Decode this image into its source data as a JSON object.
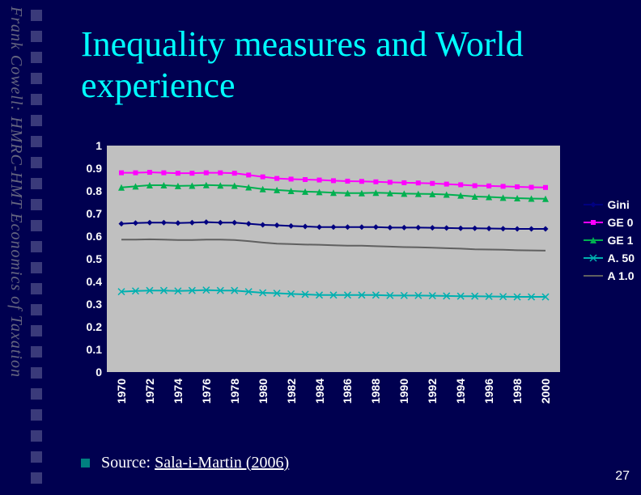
{
  "sidebar_label": "Frank Cowell: HMRC-HMT Economics of Taxation",
  "title": "Inequality measures and World\nexperience",
  "source_prefix": "Source: ",
  "source_author": "Sala-i-Martin (2006)",
  "page_number": "27",
  "colors": {
    "slide_bg": "#000050",
    "title": "#00ffff",
    "plot_bg": "#c0c0c0",
    "sidebar_text": "#666680",
    "bullet": "#008080"
  },
  "chart": {
    "type": "line",
    "ylim": [
      0,
      1
    ],
    "yticks": [
      0,
      0.1,
      0.2,
      0.3,
      0.4,
      0.5,
      0.6,
      0.7,
      0.8,
      0.9,
      1
    ],
    "ytick_labels": [
      "0",
      "0.1",
      "0.2",
      "0.3",
      "0.4",
      "0.5",
      "0.6",
      "0.7",
      "0.8",
      "0.9",
      "1"
    ],
    "xlim": [
      1970,
      2000
    ],
    "xticks": [
      1970,
      1972,
      1974,
      1976,
      1978,
      1980,
      1982,
      1984,
      1986,
      1988,
      1990,
      1992,
      1994,
      1996,
      1998,
      2000
    ],
    "xtick_labels": [
      "1970",
      "1972",
      "1974",
      "1976",
      "1978",
      "1980",
      "1982",
      "1984",
      "1986",
      "1988",
      "1990",
      "1992",
      "1994",
      "1996",
      "1998",
      "2000"
    ],
    "label_fontsize": 14,
    "series": [
      {
        "name": "Gini",
        "label": "Gini",
        "color": "#000080",
        "marker": "diamond",
        "marker_size": 7,
        "values": [
          0.655,
          0.658,
          0.66,
          0.66,
          0.658,
          0.66,
          0.662,
          0.66,
          0.66,
          0.655,
          0.65,
          0.648,
          0.645,
          0.643,
          0.64,
          0.64,
          0.64,
          0.64,
          0.64,
          0.638,
          0.638,
          0.638,
          0.637,
          0.636,
          0.635,
          0.635,
          0.634,
          0.633,
          0.632,
          0.632,
          0.632
        ]
      },
      {
        "name": "GE0",
        "label": "GE 0",
        "color": "#ff00ff",
        "marker": "square",
        "marker_size": 6,
        "values": [
          0.88,
          0.88,
          0.882,
          0.88,
          0.878,
          0.878,
          0.88,
          0.88,
          0.878,
          0.87,
          0.862,
          0.855,
          0.852,
          0.85,
          0.848,
          0.845,
          0.843,
          0.842,
          0.84,
          0.838,
          0.836,
          0.835,
          0.833,
          0.83,
          0.827,
          0.823,
          0.822,
          0.82,
          0.818,
          0.816,
          0.815
        ]
      },
      {
        "name": "GE1",
        "label": "GE 1",
        "color": "#00b050",
        "marker": "triangle",
        "marker_size": 8,
        "values": [
          0.815,
          0.82,
          0.825,
          0.825,
          0.822,
          0.823,
          0.826,
          0.824,
          0.823,
          0.816,
          0.808,
          0.804,
          0.8,
          0.797,
          0.795,
          0.792,
          0.79,
          0.79,
          0.792,
          0.79,
          0.788,
          0.787,
          0.786,
          0.784,
          0.78,
          0.775,
          0.773,
          0.77,
          0.768,
          0.766,
          0.765
        ]
      },
      {
        "name": "A50",
        "label": "A. 50",
        "color": "#00b0b0",
        "marker": "x",
        "marker_size": 8,
        "values": [
          0.355,
          0.358,
          0.36,
          0.36,
          0.358,
          0.36,
          0.362,
          0.36,
          0.36,
          0.355,
          0.35,
          0.348,
          0.345,
          0.343,
          0.34,
          0.34,
          0.34,
          0.34,
          0.34,
          0.338,
          0.338,
          0.338,
          0.337,
          0.336,
          0.335,
          0.335,
          0.334,
          0.333,
          0.332,
          0.332,
          0.332
        ]
      },
      {
        "name": "A10",
        "label": "A 1.0",
        "color": "#606060",
        "marker": "line",
        "marker_size": 0,
        "values": [
          0.585,
          0.585,
          0.586,
          0.585,
          0.583,
          0.583,
          0.585,
          0.585,
          0.583,
          0.578,
          0.572,
          0.567,
          0.565,
          0.563,
          0.562,
          0.56,
          0.558,
          0.558,
          0.556,
          0.554,
          0.552,
          0.551,
          0.549,
          0.547,
          0.545,
          0.542,
          0.541,
          0.54,
          0.538,
          0.537,
          0.536
        ]
      }
    ]
  }
}
